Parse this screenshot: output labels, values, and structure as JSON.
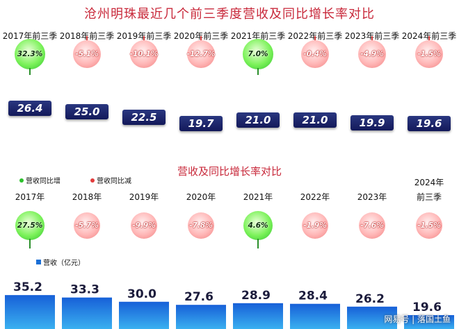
{
  "chart_data": [
    {
      "type": "bar",
      "title": "沧州明珠最近几个前三季度营收及同比增长率对比",
      "categories": [
        "2017年前三季",
        "2018年前三季",
        "2019年前三季",
        "2020年前三季",
        "2021年前三季",
        "2022年前三季",
        "2023年前三季",
        "2024年前三季"
      ],
      "values": [
        26.4,
        25.0,
        22.5,
        19.7,
        21.0,
        21.0,
        19.9,
        19.6
      ],
      "value_labels": [
        "26.4",
        "25.0",
        "22.5",
        "19.7",
        "21.0",
        "21.0",
        "19.9",
        "19.6"
      ],
      "growth": [
        32.3,
        -5.1,
        -10.1,
        -12.7,
        7.0,
        -0.4,
        -4.9,
        -1.5
      ],
      "growth_labels": [
        "32.3%",
        "-5.1%",
        "-10.1%",
        "-12.7%",
        "7.0%",
        "-0.4%",
        "-4.9%",
        "-1.5%"
      ]
    },
    {
      "type": "bar",
      "title": "营收及同比增长率对比",
      "categories": [
        "2017年",
        "2018年",
        "2019年",
        "2020年",
        "2021年",
        "2022年",
        "2023年",
        "2024年\n前三季"
      ],
      "values": [
        35.2,
        33.3,
        30.0,
        27.6,
        28.9,
        28.4,
        26.2,
        19.6
      ],
      "value_labels": [
        "35.2",
        "33.3",
        "30.0",
        "27.6",
        "28.9",
        "28.4",
        "26.2",
        "19.6"
      ],
      "growth": [
        27.5,
        -5.7,
        -9.9,
        -7.8,
        4.6,
        -1.9,
        -7.6,
        -1.5
      ],
      "growth_labels": [
        "27.5%",
        "-5.7%",
        "-9.9%",
        "-7.8%",
        "4.6%",
        "-1.9%",
        "-7.6%",
        "-1.5%"
      ],
      "legend": {
        "up": "营收同比增",
        "down": "营收同比减",
        "revenue": "营收（亿元）"
      }
    }
  ],
  "colors": {
    "positive": "#5ee35a",
    "negative": "#f59a9a",
    "bar_top": "#2a3780",
    "bar_blue": "#1b6fd6"
  },
  "watermark": "网易号 | 落国土鱼"
}
